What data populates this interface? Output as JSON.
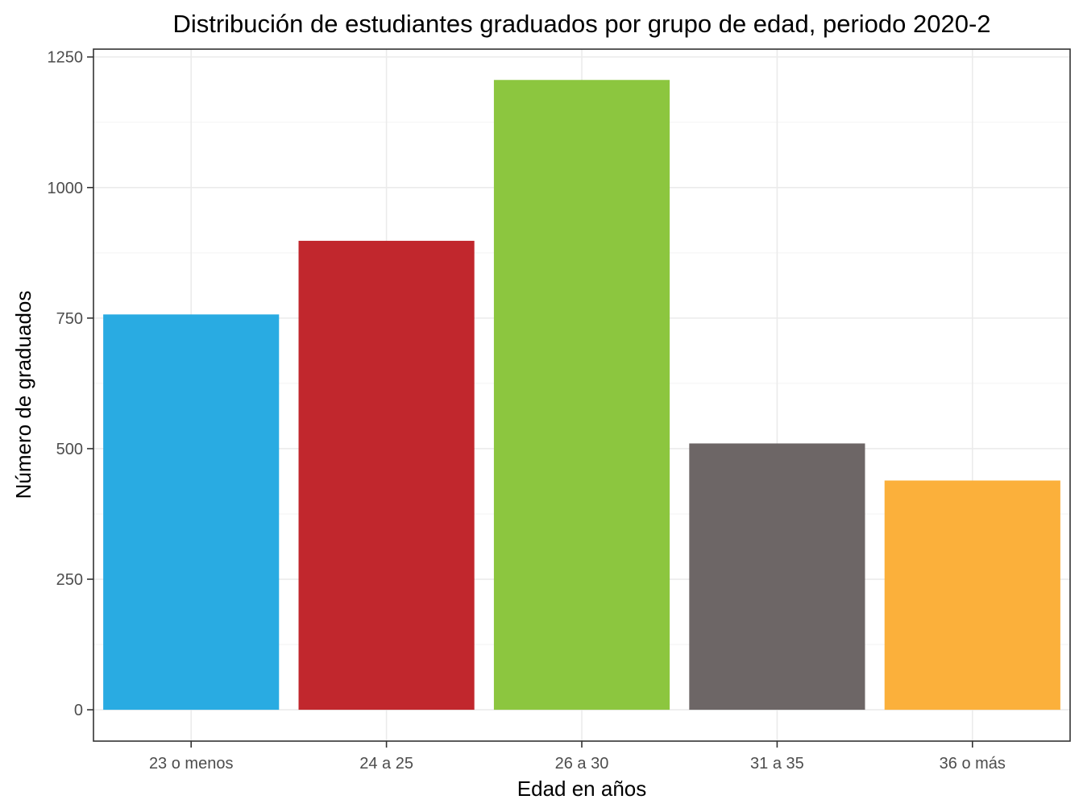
{
  "chart_data": {
    "type": "bar",
    "title": "Distribución de estudiantes graduados por grupo de edad, periodo 2020-2",
    "xlabel": "Edad en años",
    "ylabel": "Número de graduados",
    "categories": [
      "23 o menos",
      "24 a 25",
      "26 a 30",
      "31 a 35",
      "36 o más"
    ],
    "values": [
      757,
      898,
      1206,
      510,
      439
    ],
    "colors": [
      "#29ABE2",
      "#C1272D",
      "#8CC63F",
      "#6D6666",
      "#FBB03B"
    ],
    "ylim": [
      -60,
      1265
    ],
    "yticks": [
      0,
      250,
      500,
      750,
      1000,
      1250
    ],
    "ytick_labels": [
      "0",
      "250",
      "500",
      "750",
      "1000",
      "1250"
    ],
    "grid": true,
    "legend": "none"
  }
}
